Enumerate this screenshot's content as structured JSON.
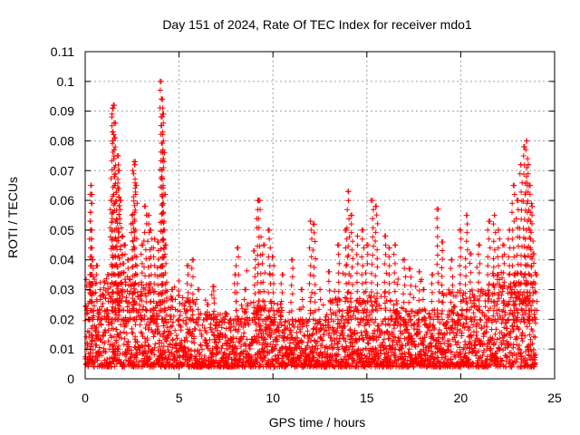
{
  "chart_data": {
    "type": "scatter",
    "title": "Day 151 of 2024, Rate Of TEC Index for receiver mdo1",
    "xlabel": "GPS time / hours",
    "ylabel": "ROTI / TECUs",
    "xlim": [
      0,
      25
    ],
    "ylim": [
      0,
      0.11
    ],
    "grid": true,
    "marker": "plus",
    "series_color": "#ff0000",
    "x_ticks": [
      {
        "value": 0,
        "label": "0"
      },
      {
        "value": 5,
        "label": "5"
      },
      {
        "value": 10,
        "label": "10"
      },
      {
        "value": 15,
        "label": "15"
      },
      {
        "value": 20,
        "label": "20"
      },
      {
        "value": 25,
        "label": "25"
      }
    ],
    "y_ticks": [
      {
        "value": 0,
        "label": "0"
      },
      {
        "value": 0.01,
        "label": "0.01"
      },
      {
        "value": 0.02,
        "label": "0.02"
      },
      {
        "value": 0.03,
        "label": "0.03"
      },
      {
        "value": 0.04,
        "label": "0.04"
      },
      {
        "value": 0.05,
        "label": "0.05"
      },
      {
        "value": 0.06,
        "label": "0.06"
      },
      {
        "value": 0.07,
        "label": "0.07"
      },
      {
        "value": 0.08,
        "label": "0.08"
      },
      {
        "value": 0.09,
        "label": "0.09"
      },
      {
        "value": 0.1,
        "label": "0.1"
      },
      {
        "value": 0.11,
        "label": "0.11"
      }
    ],
    "data_coverage": {
      "x_start": 0,
      "x_end": 24
    },
    "series": [
      {
        "name": "ROTI",
        "points": [
          [
            0.1,
            0.012
          ],
          [
            0.2,
            0.02
          ],
          [
            0.25,
            0.035
          ],
          [
            0.3,
            0.065
          ],
          [
            0.32,
            0.062
          ],
          [
            0.35,
            0.05
          ],
          [
            0.4,
            0.04
          ],
          [
            0.6,
            0.038
          ],
          [
            0.8,
            0.03
          ],
          [
            1.0,
            0.028
          ],
          [
            1.2,
            0.035
          ],
          [
            1.4,
            0.06
          ],
          [
            1.45,
            0.091
          ],
          [
            1.5,
            0.092
          ],
          [
            1.55,
            0.086
          ],
          [
            1.6,
            0.081
          ],
          [
            1.7,
            0.075
          ],
          [
            1.75,
            0.07
          ],
          [
            1.8,
            0.064
          ],
          [
            1.9,
            0.06
          ],
          [
            2.0,
            0.048
          ],
          [
            2.1,
            0.045
          ],
          [
            2.3,
            0.04
          ],
          [
            2.5,
            0.055
          ],
          [
            2.6,
            0.073
          ],
          [
            2.65,
            0.072
          ],
          [
            2.7,
            0.065
          ],
          [
            3.0,
            0.045
          ],
          [
            3.2,
            0.058
          ],
          [
            3.4,
            0.055
          ],
          [
            3.5,
            0.05
          ],
          [
            3.7,
            0.047
          ],
          [
            3.9,
            0.046
          ],
          [
            4.05,
            0.1
          ],
          [
            4.1,
            0.094
          ],
          [
            4.12,
            0.089
          ],
          [
            4.15,
            0.076
          ],
          [
            4.2,
            0.062
          ],
          [
            4.3,
            0.045
          ],
          [
            4.6,
            0.03
          ],
          [
            5.0,
            0.028
          ],
          [
            5.5,
            0.038
          ],
          [
            5.7,
            0.04
          ],
          [
            6.0,
            0.03
          ],
          [
            6.5,
            0.025
          ],
          [
            6.8,
            0.031
          ],
          [
            7.0,
            0.018
          ],
          [
            7.5,
            0.022
          ],
          [
            8.0,
            0.035
          ],
          [
            8.1,
            0.044
          ],
          [
            8.5,
            0.03
          ],
          [
            9.0,
            0.043
          ],
          [
            9.2,
            0.06
          ],
          [
            9.3,
            0.06
          ],
          [
            9.5,
            0.045
          ],
          [
            9.8,
            0.05
          ],
          [
            10.0,
            0.041
          ],
          [
            10.5,
            0.035
          ],
          [
            11.0,
            0.04
          ],
          [
            11.5,
            0.03
          ],
          [
            12.0,
            0.053
          ],
          [
            12.2,
            0.052
          ],
          [
            12.5,
            0.03
          ],
          [
            13.0,
            0.036
          ],
          [
            13.5,
            0.045
          ],
          [
            13.9,
            0.05
          ],
          [
            14.0,
            0.063
          ],
          [
            14.2,
            0.055
          ],
          [
            14.5,
            0.048
          ],
          [
            14.8,
            0.05
          ],
          [
            15.0,
            0.045
          ],
          [
            15.3,
            0.06
          ],
          [
            15.5,
            0.058
          ],
          [
            16.0,
            0.048
          ],
          [
            16.2,
            0.044
          ],
          [
            16.5,
            0.045
          ],
          [
            17.0,
            0.04
          ],
          [
            17.3,
            0.037
          ],
          [
            17.8,
            0.036
          ],
          [
            18.0,
            0.03
          ],
          [
            18.5,
            0.035
          ],
          [
            18.8,
            0.057
          ],
          [
            19.0,
            0.046
          ],
          [
            19.5,
            0.04
          ],
          [
            20.0,
            0.05
          ],
          [
            20.3,
            0.055
          ],
          [
            20.5,
            0.042
          ],
          [
            21.0,
            0.045
          ],
          [
            21.5,
            0.053
          ],
          [
            21.8,
            0.055
          ],
          [
            22.0,
            0.05
          ],
          [
            22.3,
            0.045
          ],
          [
            22.6,
            0.05
          ],
          [
            22.8,
            0.065
          ],
          [
            23.0,
            0.06
          ],
          [
            23.2,
            0.072
          ],
          [
            23.4,
            0.078
          ],
          [
            23.5,
            0.08
          ],
          [
            23.6,
            0.072
          ],
          [
            23.7,
            0.065
          ],
          [
            23.8,
            0.058
          ],
          [
            23.9,
            0.042
          ],
          [
            24.0,
            0.035
          ]
        ]
      }
    ]
  }
}
